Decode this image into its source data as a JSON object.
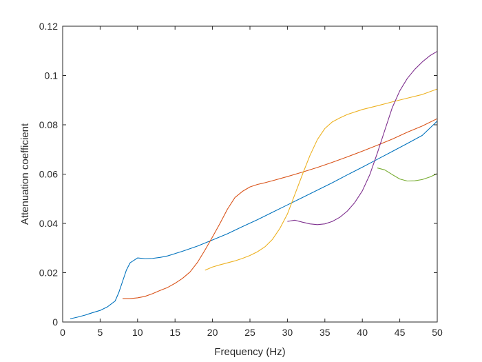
{
  "chart_data": {
    "type": "line",
    "title": "",
    "xlabel": "Frequency (Hz)",
    "ylabel": "Attenuation coefficient",
    "xlim": [
      0,
      50
    ],
    "ylim": [
      0,
      0.12
    ],
    "xticks": [
      0,
      5,
      10,
      15,
      20,
      25,
      30,
      35,
      40,
      45,
      50
    ],
    "yticks": [
      0,
      0.02,
      0.04,
      0.06,
      0.08,
      0.1,
      0.12
    ],
    "xtick_labels": [
      "0",
      "5",
      "10",
      "15",
      "20",
      "25",
      "30",
      "35",
      "40",
      "45",
      "50"
    ],
    "ytick_labels": [
      "0",
      "0.02",
      "0.04",
      "0.06",
      "0.08",
      "0.1",
      "0.12"
    ],
    "grid": false,
    "legend": "none",
    "series": [
      {
        "color": "#0072BD",
        "x": [
          1,
          2,
          3,
          4,
          5,
          6,
          7,
          7.5,
          8,
          8.5,
          9,
          10,
          11,
          12,
          13,
          14,
          16,
          18,
          20,
          22,
          24,
          26,
          28,
          30,
          32,
          34,
          36,
          38,
          40,
          42,
          44,
          46,
          48,
          50
        ],
        "y": [
          0.0013,
          0.002,
          0.0028,
          0.0038,
          0.0047,
          0.0062,
          0.0085,
          0.012,
          0.0165,
          0.021,
          0.024,
          0.026,
          0.0257,
          0.0258,
          0.0262,
          0.0268,
          0.0287,
          0.0308,
          0.0333,
          0.0358,
          0.0387,
          0.0415,
          0.0445,
          0.0475,
          0.0505,
          0.0535,
          0.0565,
          0.0597,
          0.0628,
          0.066,
          0.0692,
          0.0724,
          0.0757,
          0.0815
        ]
      },
      {
        "color": "#D95319",
        "x": [
          8,
          9,
          10,
          11,
          12,
          13,
          14,
          15,
          16,
          17,
          18,
          19,
          20,
          21,
          22,
          23,
          24,
          25,
          26,
          27,
          28,
          30,
          32,
          34,
          36,
          38,
          40,
          42,
          44,
          46,
          48,
          50
        ],
        "y": [
          0.0095,
          0.0095,
          0.0098,
          0.0104,
          0.0115,
          0.0128,
          0.014,
          0.0157,
          0.0177,
          0.0203,
          0.0242,
          0.0292,
          0.0345,
          0.04,
          0.0458,
          0.0505,
          0.053,
          0.0548,
          0.0558,
          0.0565,
          0.0573,
          0.059,
          0.0608,
          0.0627,
          0.0648,
          0.067,
          0.0693,
          0.0717,
          0.0742,
          0.077,
          0.0795,
          0.0825
        ]
      },
      {
        "color": "#EDB120",
        "x": [
          19,
          20,
          21,
          22,
          23,
          24,
          25,
          26,
          27,
          28,
          29,
          30,
          31,
          32,
          33,
          34,
          35,
          36,
          37,
          38,
          40,
          42,
          44,
          46,
          48,
          50
        ],
        "y": [
          0.021,
          0.0223,
          0.0232,
          0.024,
          0.0248,
          0.0258,
          0.027,
          0.0285,
          0.0305,
          0.0335,
          0.038,
          0.0438,
          0.0518,
          0.0598,
          0.0675,
          0.074,
          0.0785,
          0.0812,
          0.0828,
          0.0842,
          0.0862,
          0.0877,
          0.0893,
          0.0908,
          0.0923,
          0.0945
        ]
      },
      {
        "color": "#7E2F8E",
        "x": [
          30,
          31,
          32,
          33,
          34,
          35,
          36,
          37,
          38,
          39,
          40,
          41,
          42,
          43,
          44,
          45,
          46,
          47,
          48,
          49,
          50
        ],
        "y": [
          0.0408,
          0.0413,
          0.0405,
          0.0398,
          0.0395,
          0.0398,
          0.0408,
          0.0425,
          0.045,
          0.0485,
          0.0532,
          0.0598,
          0.0685,
          0.0778,
          0.087,
          0.0938,
          0.0988,
          0.1025,
          0.1055,
          0.108,
          0.1098
        ]
      },
      {
        "color": "#77AC30",
        "x": [
          42,
          43,
          44,
          45,
          46,
          47,
          48,
          49,
          50
        ],
        "y": [
          0.0625,
          0.0617,
          0.0598,
          0.058,
          0.0572,
          0.0573,
          0.0578,
          0.0588,
          0.0602
        ]
      }
    ]
  }
}
